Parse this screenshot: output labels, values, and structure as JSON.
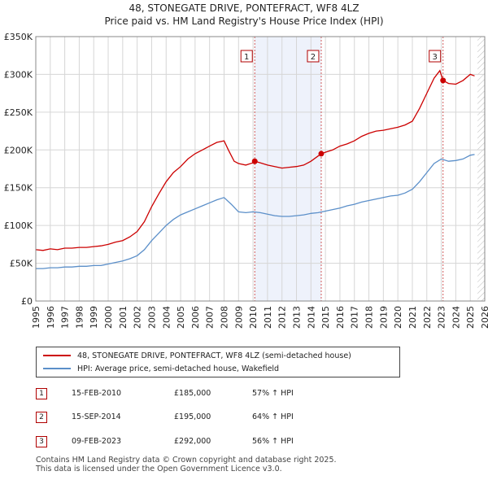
{
  "header": {
    "title_line1": "48, STONEGATE DRIVE, PONTEFRACT, WF8 4LZ",
    "title_line2": "Price paid vs. HM Land Registry's House Price Index (HPI)"
  },
  "legend": {
    "items": [
      {
        "label": "48, STONEGATE DRIVE, PONTEFRACT, WF8 4LZ (semi-detached house)",
        "color": "#cc0000"
      },
      {
        "label": "HPI: Average price, semi-detached house, Wakefield",
        "color": "#5b8fc9"
      }
    ]
  },
  "events": [
    {
      "num": "1",
      "date": "15-FEB-2010",
      "price": "£185,000",
      "hpi": "57% ↑ HPI"
    },
    {
      "num": "2",
      "date": "15-SEP-2014",
      "price": "£195,000",
      "hpi": "64% ↑ HPI"
    },
    {
      "num": "3",
      "date": "09-FEB-2023",
      "price": "£292,000",
      "hpi": "56% ↑ HPI"
    }
  ],
  "footer": {
    "line1": "Contains HM Land Registry data © Crown copyright and database right 2025.",
    "line2": "This data is licensed under the Open Government Licence v3.0."
  },
  "chart_data": {
    "type": "line",
    "x_range": [
      1995,
      2026
    ],
    "ylim": [
      0,
      350000
    ],
    "y_ticks": [
      0,
      50000,
      100000,
      150000,
      200000,
      250000,
      300000,
      350000
    ],
    "y_tick_labels": [
      "£0",
      "£50K",
      "£100K",
      "£150K",
      "£200K",
      "£250K",
      "£300K",
      "£350K"
    ],
    "x_ticks": [
      1995,
      1996,
      1997,
      1998,
      1999,
      2000,
      2001,
      2002,
      2003,
      2004,
      2005,
      2006,
      2007,
      2008,
      2009,
      2010,
      2011,
      2012,
      2013,
      2014,
      2015,
      2016,
      2017,
      2018,
      2019,
      2020,
      2021,
      2022,
      2023,
      2024,
      2025,
      2026
    ],
    "grid": true,
    "shaded_regions": [
      [
        2010.12,
        2014.71
      ]
    ],
    "future_hatch_from": 2025.5,
    "series": [
      {
        "name": "48, STONEGATE DRIVE, PONTEFRACT, WF8 4LZ (semi-detached house)",
        "color": "#cc0000",
        "x": [
          1995.0,
          1995.5,
          1996.0,
          1996.5,
          1997.0,
          1997.5,
          1998.0,
          1998.5,
          1999.0,
          1999.5,
          2000.0,
          2000.5,
          2001.0,
          2001.5,
          2002.0,
          2002.5,
          2003.0,
          2003.5,
          2004.0,
          2004.5,
          2005.0,
          2005.5,
          2006.0,
          2006.5,
          2007.0,
          2007.5,
          2008.0,
          2008.3,
          2008.7,
          2009.0,
          2009.5,
          2010.0,
          2010.12,
          2010.5,
          2011.0,
          2011.5,
          2012.0,
          2012.5,
          2013.0,
          2013.5,
          2014.0,
          2014.5,
          2014.71,
          2015.0,
          2015.5,
          2016.0,
          2016.5,
          2017.0,
          2017.5,
          2018.0,
          2018.5,
          2019.0,
          2019.5,
          2020.0,
          2020.5,
          2021.0,
          2021.5,
          2022.0,
          2022.5,
          2022.9,
          2023.12,
          2023.5,
          2024.0,
          2024.5,
          2025.0,
          2025.3
        ],
        "values": [
          68000,
          67000,
          69000,
          68000,
          70000,
          70000,
          71000,
          71000,
          72000,
          73000,
          75000,
          78000,
          80000,
          85000,
          92000,
          105000,
          125000,
          142000,
          158000,
          170000,
          178000,
          188000,
          195000,
          200000,
          205000,
          210000,
          212000,
          200000,
          185000,
          182000,
          180000,
          183000,
          185000,
          183000,
          180000,
          178000,
          176000,
          177000,
          178000,
          180000,
          185000,
          192000,
          195000,
          197000,
          200000,
          205000,
          208000,
          212000,
          218000,
          222000,
          225000,
          226000,
          228000,
          230000,
          233000,
          238000,
          255000,
          275000,
          295000,
          305000,
          292000,
          288000,
          287000,
          292000,
          300000,
          298000
        ]
      },
      {
        "name": "HPI: Average price, semi-detached house, Wakefield",
        "color": "#5b8fc9",
        "x": [
          1995.0,
          1995.5,
          1996.0,
          1996.5,
          1997.0,
          1997.5,
          1998.0,
          1998.5,
          1999.0,
          1999.5,
          2000.0,
          2000.5,
          2001.0,
          2001.5,
          2002.0,
          2002.5,
          2003.0,
          2003.5,
          2004.0,
          2004.5,
          2005.0,
          2005.5,
          2006.0,
          2006.5,
          2007.0,
          2007.5,
          2008.0,
          2008.5,
          2009.0,
          2009.5,
          2010.0,
          2010.5,
          2011.0,
          2011.5,
          2012.0,
          2012.5,
          2013.0,
          2013.5,
          2014.0,
          2014.5,
          2015.0,
          2015.5,
          2016.0,
          2016.5,
          2017.0,
          2017.5,
          2018.0,
          2018.5,
          2019.0,
          2019.5,
          2020.0,
          2020.5,
          2021.0,
          2021.5,
          2022.0,
          2022.5,
          2023.0,
          2023.5,
          2024.0,
          2024.5,
          2025.0,
          2025.3
        ],
        "values": [
          43000,
          43000,
          44000,
          44000,
          45000,
          45000,
          46000,
          46000,
          47000,
          47000,
          49000,
          51000,
          53000,
          56000,
          60000,
          68000,
          80000,
          90000,
          100000,
          108000,
          114000,
          118000,
          122000,
          126000,
          130000,
          134000,
          137000,
          128000,
          118000,
          117000,
          118000,
          117000,
          115000,
          113000,
          112000,
          112000,
          113000,
          114000,
          116000,
          117000,
          119000,
          121000,
          123000,
          126000,
          128000,
          131000,
          133000,
          135000,
          137000,
          139000,
          140000,
          143000,
          148000,
          158000,
          170000,
          182000,
          188000,
          185000,
          186000,
          188000,
          193000,
          194000
        ]
      }
    ],
    "markers": [
      {
        "label": "1",
        "x": 2010.12,
        "y": 185000
      },
      {
        "label": "2",
        "x": 2014.71,
        "y": 195000
      },
      {
        "label": "3",
        "x": 2023.12,
        "y": 292000
      }
    ]
  }
}
